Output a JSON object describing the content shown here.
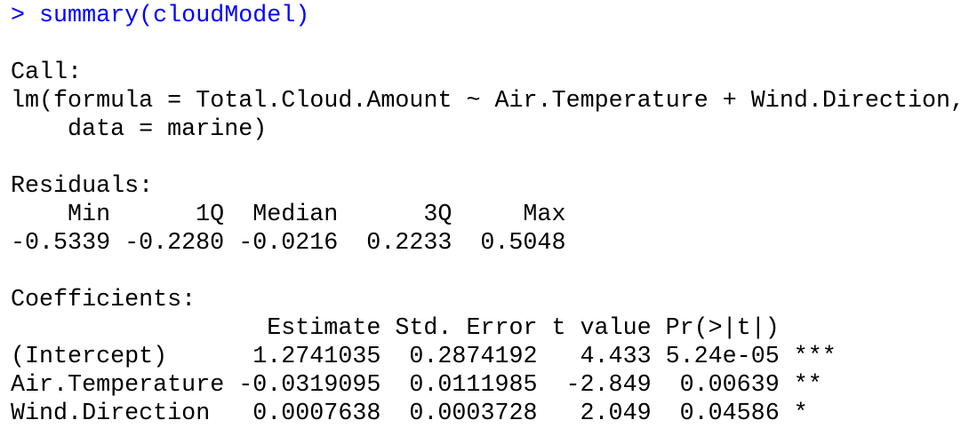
{
  "console": {
    "prompt": ">",
    "command": "summary(cloudModel)",
    "call": {
      "label": "Call:",
      "lines": [
        "lm(formula = Total.Cloud.Amount ~ Air.Temperature + Wind.Direction,",
        "data = marine)"
      ]
    },
    "residuals": {
      "label": "Residuals:",
      "header": [
        "Min",
        "1Q",
        "Median",
        "3Q",
        "Max"
      ],
      "values": [
        "-0.5339",
        "-0.2280",
        "-0.0216",
        "0.2233",
        "0.5048"
      ]
    },
    "coefficients": {
      "label": "Coefficients:",
      "header": [
        "Estimate",
        "Std. Error",
        "t value",
        "Pr(>|t|)"
      ],
      "rows": [
        [
          "(Intercept)",
          "1.2741035",
          "0.2874192",
          "4.433",
          "5.24e-05",
          "***"
        ],
        [
          "Air.Temperature",
          "-0.0319095",
          "0.0111985",
          "-2.849",
          "0.00639",
          "**"
        ],
        [
          "Wind.Direction",
          "0.0007638",
          "0.0003728",
          "2.049",
          "0.04586",
          "*"
        ]
      ]
    }
  }
}
